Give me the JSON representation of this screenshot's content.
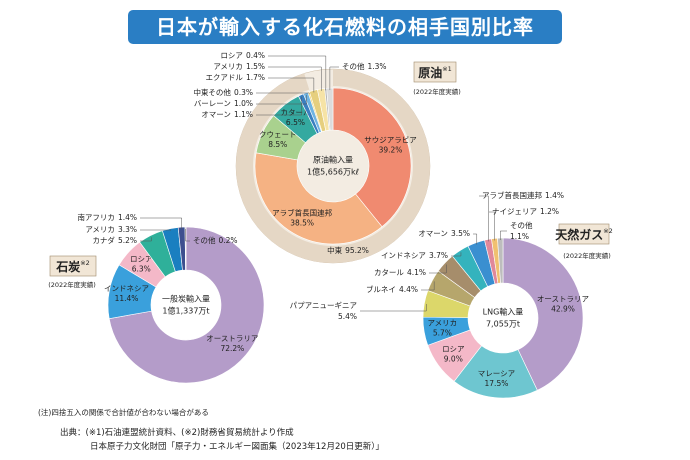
{
  "title": "日本が輸入する化石燃料の相手国別比率",
  "chart_data": [
    {
      "type": "pie",
      "title": "原油",
      "title_note": "※1",
      "subtitle": "(2022年度実績)",
      "center_label": [
        "原油輸入量",
        "1億5,656万kℓ"
      ],
      "categories": [
        "サウジアラビア",
        "アラブ首長国連邦",
        "クウェート",
        "カタール",
        "オマーン",
        "バーレーン",
        "中東その他",
        "エクアドル",
        "アメリカ",
        "ロシア",
        "その他"
      ],
      "values": [
        39.2,
        38.5,
        8.5,
        6.5,
        1.1,
        1.0,
        0.3,
        1.7,
        1.5,
        0.4,
        1.3
      ],
      "value_labels": [
        "39.2%",
        "38.5%",
        "8.5%",
        "6.5%",
        "1.1%",
        "1.0%",
        "0.3%",
        "1.7%",
        "1.5%",
        "0.4%",
        "1.3%"
      ],
      "colors": [
        "#f08a70",
        "#f5b283",
        "#a9d18e",
        "#34a9a0",
        "#3a7fc0",
        "#70b4e2",
        "#f0d060",
        "#e6cf7e",
        "#f6e3a6",
        "#b9b9b9",
        "#dcdcdc"
      ],
      "outer": {
        "categories": [
          "中東"
        ],
        "values": [
          95.2
        ],
        "value_labels": [
          "95.2%"
        ],
        "color": "#e5d7c5"
      }
    },
    {
      "type": "pie",
      "title": "石炭",
      "title_note": "※2",
      "subtitle": "(2022年度実績)",
      "center_label": [
        "一般炭輸入量",
        "1億1,337万t"
      ],
      "categories": [
        "オーストラリア",
        "インドネシア",
        "ロシア",
        "カナダ",
        "アメリカ",
        "南アフリカ",
        "その他"
      ],
      "values": [
        72.2,
        11.4,
        6.3,
        5.2,
        3.3,
        1.4,
        0.2
      ],
      "value_labels": [
        "72.2%",
        "11.4%",
        "6.3%",
        "5.2%",
        "3.3%",
        "1.4%",
        "0.2%"
      ],
      "colors": [
        "#b49cc9",
        "#3aa0dc",
        "#f4b8c8",
        "#2fb09a",
        "#1a7fc0",
        "#3d4f8f",
        "#bdbdbd"
      ]
    },
    {
      "type": "pie",
      "title": "天然ガス",
      "title_note": "※2",
      "subtitle": "(2022年度実績)",
      "center_label": [
        "LNG輸入量",
        "7,055万t"
      ],
      "categories": [
        "オーストラリア",
        "マレーシア",
        "ロシア",
        "アメリカ",
        "パプアニューギニア",
        "ブルネイ",
        "カタール",
        "インドネシア",
        "オマーン",
        "アラブ首長国連邦",
        "ナイジェリア",
        "その他"
      ],
      "values": [
        42.9,
        17.5,
        9.0,
        5.7,
        5.4,
        4.4,
        4.1,
        3.7,
        3.5,
        1.4,
        1.2,
        1.1
      ],
      "value_labels": [
        "42.9%",
        "17.5%",
        "9.0%",
        "5.7%",
        "5.4%",
        "4.4%",
        "4.1%",
        "3.7%",
        "3.5%",
        "1.4%",
        "1.2%",
        "1.1%"
      ],
      "colors": [
        "#b49cc9",
        "#6ec6d0",
        "#f4b8c8",
        "#3aa0dc",
        "#dcd76a",
        "#b6a66c",
        "#a68d6b",
        "#34b3bd",
        "#3a8fd0",
        "#e0889a",
        "#f0c070",
        "#bdbdbd"
      ]
    }
  ],
  "notes": [
    "(注)四捨五入の関係で合計値が合わない場合がある",
    "出典：(※1)石油連盟統計資料、(※2)財務省貿易統計より作成",
    "日本原子力文化財団「原子力・エネルギー図面集（2023年12月20日更新）」"
  ]
}
